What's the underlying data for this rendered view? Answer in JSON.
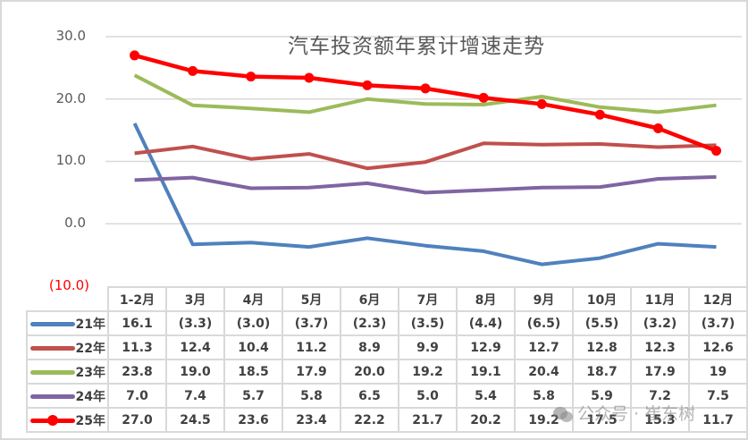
{
  "chart_data": {
    "type": "line",
    "title": "汽车投资额年累计增速走势",
    "xlabel": "",
    "ylabel": "",
    "ylim": [
      -10,
      30
    ],
    "yticks": [
      "30.0",
      "20.0",
      "10.0",
      "0.0",
      "(10.0)"
    ],
    "grid": true,
    "legend_position": "data-table-left",
    "categories": [
      "1-2月",
      "3月",
      "4月",
      "5月",
      "6月",
      "7月",
      "8月",
      "9月",
      "10月",
      "11月",
      "12月"
    ],
    "series": [
      {
        "name": "21年",
        "color": "#4f81bd",
        "markers": false,
        "values": [
          16.1,
          -3.3,
          -3.0,
          -3.7,
          -2.3,
          -3.5,
          -4.4,
          -6.5,
          -5.5,
          -3.2,
          -3.7
        ],
        "labels": [
          "16.1",
          "(3.3)",
          "(3.0)",
          "(3.7)",
          "(2.3)",
          "(3.5)",
          "(4.4)",
          "(6.5)",
          "(5.5)",
          "(3.2)",
          "(3.7)"
        ]
      },
      {
        "name": "22年",
        "color": "#c0504d",
        "markers": false,
        "values": [
          11.3,
          12.4,
          10.4,
          11.2,
          8.9,
          9.9,
          12.9,
          12.7,
          12.8,
          12.3,
          12.6
        ],
        "labels": [
          "11.3",
          "12.4",
          "10.4",
          "11.2",
          "8.9",
          "9.9",
          "12.9",
          "12.7",
          "12.8",
          "12.3",
          "12.6"
        ]
      },
      {
        "name": "23年",
        "color": "#9bbb59",
        "markers": false,
        "values": [
          23.8,
          19.0,
          18.5,
          17.9,
          20.0,
          19.2,
          19.1,
          20.4,
          18.7,
          17.9,
          19
        ],
        "labels": [
          "23.8",
          "19.0",
          "18.5",
          "17.9",
          "20.0",
          "19.2",
          "19.1",
          "20.4",
          "18.7",
          "17.9",
          "19"
        ]
      },
      {
        "name": "24年",
        "color": "#8064a2",
        "markers": false,
        "values": [
          7.0,
          7.4,
          5.7,
          5.8,
          6.5,
          5.0,
          5.4,
          5.8,
          5.9,
          7.2,
          7.5
        ],
        "labels": [
          "7.0",
          "7.4",
          "5.7",
          "5.8",
          "6.5",
          "5.0",
          "5.4",
          "5.8",
          "5.9",
          "7.2",
          "7.5"
        ]
      },
      {
        "name": "25年",
        "color": "#ff0000",
        "markers": true,
        "values": [
          27.0,
          24.5,
          23.6,
          23.4,
          22.2,
          21.7,
          20.2,
          19.2,
          17.5,
          15.3,
          11.7
        ],
        "labels": [
          "27.0",
          "24.5",
          "23.6",
          "23.4",
          "22.2",
          "21.7",
          "20.2",
          "19.2",
          "17.5",
          "15.3",
          "11.7"
        ]
      }
    ]
  },
  "watermark": {
    "icon": "wechat-icon",
    "text": "公众号 · 崔东树"
  }
}
